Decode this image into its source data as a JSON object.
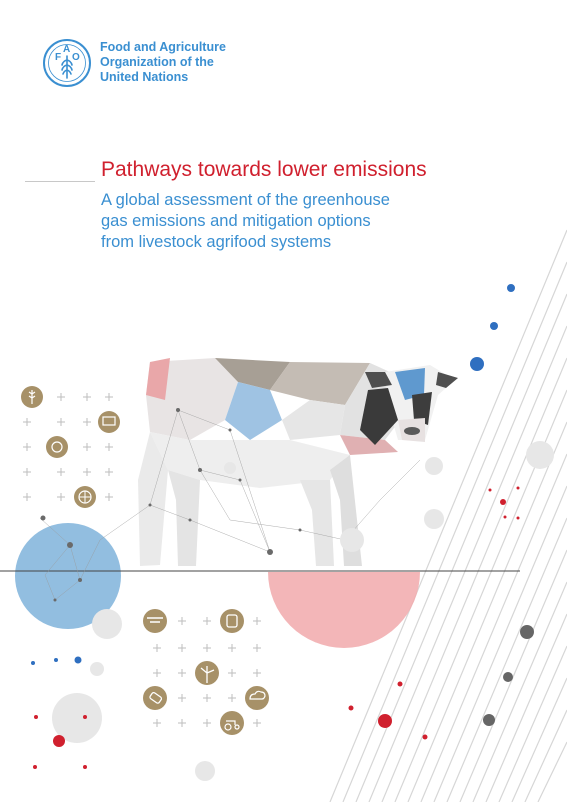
{
  "header": {
    "logo": {
      "icon": "fao-emblem-icon",
      "letters": [
        "F",
        "A",
        "O"
      ],
      "motto": "FIAT PANIS"
    },
    "org_name_lines": [
      "Food and Agriculture",
      "Organization of the",
      "United Nations"
    ]
  },
  "cover": {
    "title": "Pathways towards lower emissions",
    "subtitle_lines": [
      "A global assessment of the greenhouse",
      "gas emissions and mitigation options",
      "from livestock agrifood systems"
    ]
  },
  "illustration": {
    "subject": "cow-illustration",
    "theme_icons": [
      "wheat-icon",
      "livestock-icon",
      "feed-icon",
      "globe-icon",
      "drone-icon",
      "biogas-icon",
      "wind-turbine-icon",
      "feed-bottle-icon",
      "weather-icon",
      "tractor-icon"
    ]
  },
  "colors": {
    "fao_blue": "#3a8fd1",
    "title_red": "#d0202e",
    "icon_gold": "#a79168",
    "circle_blue": "#7fb3db",
    "circle_pink": "#f2aeb0"
  }
}
